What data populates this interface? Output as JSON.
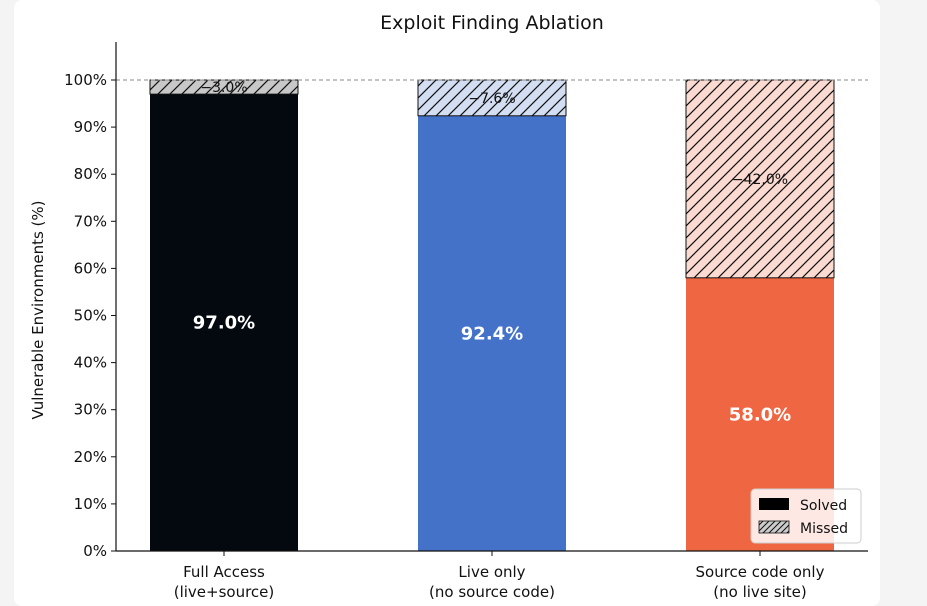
{
  "chart_data": {
    "type": "bar",
    "stacked": true,
    "title": "Exploit Finding Ablation",
    "xlabel": "",
    "ylabel": "Vulnerable Environments (%)",
    "ylim": [
      0,
      100
    ],
    "yticks": [
      0,
      10,
      20,
      30,
      40,
      50,
      60,
      70,
      80,
      90,
      100
    ],
    "ytick_labels": [
      "0%",
      "10%",
      "20%",
      "30%",
      "40%",
      "50%",
      "60%",
      "70%",
      "80%",
      "90%",
      "100%"
    ],
    "categories": [
      "Full Access\n(live+source)",
      "Live only\n(no source code)",
      "Source code only\n(no live site)"
    ],
    "series": [
      {
        "name": "Solved",
        "values": [
          97.0,
          92.4,
          58.0
        ],
        "labels": [
          "97.0%",
          "92.4%",
          "58.0%"
        ]
      },
      {
        "name": "Missed",
        "values": [
          3.0,
          7.6,
          42.0
        ],
        "labels": [
          "−3.0%",
          "−7.6%",
          "−42.0%"
        ],
        "hatch": "diagonal"
      }
    ],
    "bar_colors": [
      "#03090e",
      "#4472c9",
      "#ef6742"
    ],
    "missed_fill_colors": [
      "#c8c8c8",
      "#d3def2",
      "#fbdad2"
    ],
    "reference_line": {
      "y": 100,
      "style": "dashed"
    },
    "grid": false,
    "legend_position": "lower-right",
    "legend_swatch_colors": [
      "#000000",
      "#cccccc"
    ]
  }
}
